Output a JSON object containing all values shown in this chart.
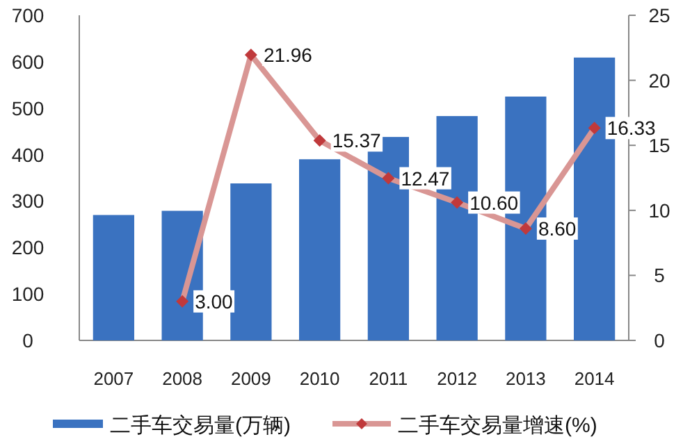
{
  "chart_data": {
    "type": "bar",
    "categories": [
      "2007",
      "2008",
      "2009",
      "2010",
      "2011",
      "2012",
      "2013",
      "2014"
    ],
    "series": [
      {
        "name": "二手车交易量(万辆)",
        "color": "#3a72c0",
        "values": [
          270,
          279,
          338,
          390,
          438,
          483,
          525,
          609
        ]
      },
      {
        "name": "二手车交易量增速(%)",
        "type": "line",
        "axis": "y2",
        "color": "#d99694",
        "marker": "diamond",
        "values": [
          null,
          3.0,
          21.96,
          15.37,
          12.47,
          10.6,
          8.6,
          16.33
        ],
        "value_labels": [
          null,
          "3.00",
          "21.96",
          "15.37",
          "12.47",
          "10.60",
          "8.60",
          "16.33"
        ]
      }
    ],
    "ylim": [
      0,
      700
    ],
    "yticks": [
      0,
      100,
      200,
      300,
      400,
      500,
      600,
      700
    ],
    "y2lim": [
      0,
      25
    ],
    "y2ticks": [
      0,
      5,
      10,
      15,
      20,
      25
    ],
    "grid": false,
    "legend": "bottom"
  }
}
